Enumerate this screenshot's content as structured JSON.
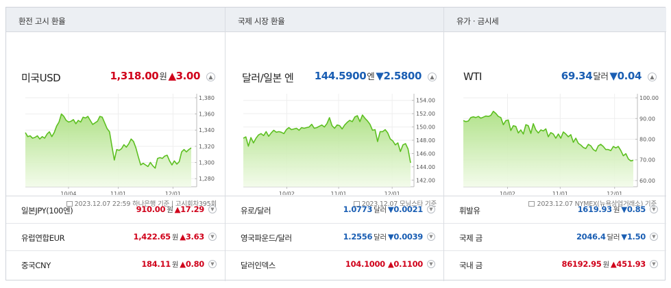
{
  "sections": [
    {
      "header": "환전 고시 환율",
      "main": {
        "name": "미국USD",
        "price": "1,318.00",
        "unit": "원",
        "change_arrow": "▲",
        "change": "3.00",
        "direction": "up",
        "source": "2023.12.07 22:59 하나은행 기준 | 고시회차395회"
      },
      "rows": [
        {
          "name": "일본JPY(100엔)",
          "value": "910.00",
          "unit": "원",
          "arrow": "▲",
          "change": "17.29",
          "direction": "up"
        },
        {
          "name": "유럽연합EUR",
          "value": "1,422.65",
          "unit": "원",
          "arrow": "▲",
          "change": "3.63",
          "direction": "up"
        },
        {
          "name": "중국CNY",
          "value": "184.11",
          "unit": "원",
          "arrow": "▲",
          "change": "0.80",
          "direction": "up"
        }
      ]
    },
    {
      "header": "국제 시장 환율",
      "main": {
        "name": "달러/일본 엔",
        "price": "144.5900",
        "unit": "엔",
        "change_arrow": "▼",
        "change": "2.5800",
        "direction": "down",
        "source": "2023.12.07 모닝스타 기준"
      },
      "rows": [
        {
          "name": "유로/달러",
          "value": "1.0773",
          "unit": "달러",
          "arrow": "▼",
          "change": "0.0021",
          "direction": "down"
        },
        {
          "name": "영국파운드/달러",
          "value": "1.2556",
          "unit": "달러",
          "arrow": "▼",
          "change": "0.0039",
          "direction": "down"
        },
        {
          "name": "달러인덱스",
          "value": "104.1000",
          "unit": "",
          "arrow": "▲",
          "change": "0.1100",
          "direction": "up"
        }
      ]
    },
    {
      "header": "유가 · 금시세",
      "main": {
        "name": "WTI",
        "price": "69.34",
        "unit": "달러",
        "change_arrow": "▼",
        "change": "0.04",
        "direction": "down",
        "source": "2023.12.07 NYMEX(뉴욕상업거래소) 기준"
      },
      "rows": [
        {
          "name": "휘발유",
          "value": "1619.93",
          "unit": "원",
          "arrow": "▼",
          "change": "0.85",
          "direction": "down"
        },
        {
          "name": "국제 금",
          "value": "2046.4",
          "unit": "달러",
          "arrow": "▼",
          "change": "1.50",
          "direction": "down"
        },
        {
          "name": "국내 금",
          "value": "86192.95",
          "unit": "원",
          "arrow": "▲",
          "change": "451.93",
          "direction": "up"
        }
      ]
    }
  ],
  "colors": {
    "up": "#d0021b",
    "down": "#1a5eb3",
    "line": "#5cbf20"
  },
  "chart_data": [
    {
      "type": "area",
      "ylim": [
        1270,
        1385
      ],
      "yticks": [
        "1,380",
        "1,360",
        "1,340",
        "1,320",
        "1,300",
        "1,280"
      ],
      "ytick_values": [
        1380,
        1360,
        1340,
        1320,
        1300,
        1280
      ],
      "xticks": [
        "10/04",
        "11/01",
        "12/01"
      ],
      "xtick_positions": [
        0.26,
        0.56,
        0.89
      ],
      "values": [
        1337,
        1332,
        1333,
        1330,
        1331,
        1333,
        1329,
        1332,
        1330,
        1335,
        1338,
        1332,
        1337,
        1345,
        1350,
        1360,
        1357,
        1352,
        1350,
        1351,
        1353,
        1348,
        1352,
        1350,
        1356,
        1355,
        1357,
        1352,
        1347,
        1349,
        1351,
        1357,
        1356,
        1349,
        1342,
        1338,
        1320,
        1303,
        1316,
        1315,
        1317,
        1322,
        1319,
        1323,
        1329,
        1326,
        1318,
        1307,
        1297,
        1299,
        1297,
        1295,
        1300,
        1296,
        1293,
        1305,
        1306,
        1305,
        1308,
        1309,
        1302,
        1297,
        1302,
        1298,
        1301,
        1313,
        1316,
        1313,
        1316,
        1318
      ]
    },
    {
      "type": "area",
      "ylim": [
        141,
        155
      ],
      "yticks": [
        "154.00",
        "152.00",
        "150.00",
        "148.00",
        "146.00",
        "144.00",
        "142.00"
      ],
      "ytick_values": [
        154,
        152,
        150,
        148,
        146,
        144,
        142
      ],
      "xticks": [
        "10/02",
        "11/01",
        "12/01"
      ],
      "xtick_positions": [
        0.26,
        0.57,
        0.89
      ],
      "values": [
        148.3,
        148.5,
        147.1,
        148.4,
        147.6,
        148.3,
        148.8,
        149.0,
        148.7,
        149.3,
        148.6,
        149.1,
        149.5,
        149.2,
        149.3,
        149.2,
        149.0,
        149.6,
        149.9,
        149.6,
        149.7,
        149.8,
        149.5,
        149.9,
        149.8,
        149.9,
        150.0,
        150.4,
        149.8,
        149.9,
        150.1,
        150.3,
        150.0,
        150.5,
        151.4,
        150.2,
        149.8,
        150.3,
        150.2,
        149.7,
        150.3,
        150.7,
        151.0,
        150.8,
        151.5,
        151.7,
        150.8,
        151.8,
        151.3,
        150.9,
        150.4,
        149.5,
        149.6,
        147.8,
        149.3,
        149.3,
        149.6,
        149.1,
        148.2,
        147.9,
        147.3,
        147.6,
        146.3,
        147.3,
        147.5,
        146.7,
        144.6
      ]
    },
    {
      "type": "area",
      "ylim": [
        57,
        102
      ],
      "yticks": [
        "100.00",
        "90.00",
        "80.00",
        "70.00",
        "60.00"
      ],
      "ytick_values": [
        100,
        90,
        80,
        70,
        60
      ],
      "xticks": [
        "10/02",
        "11/01",
        "12/01"
      ],
      "xtick_positions": [
        0.26,
        0.57,
        0.89
      ],
      "values": [
        89,
        88.5,
        88.8,
        90.5,
        90.8,
        90.5,
        91,
        90.2,
        90.7,
        91.2,
        91,
        91.5,
        93.5,
        92.5,
        91,
        90.5,
        87,
        89,
        89.3,
        84.2,
        86.5,
        86.2,
        83,
        84.5,
        82.5,
        87,
        86.5,
        82.8,
        87.5,
        84.5,
        83,
        84.5,
        84,
        85,
        81.2,
        83.2,
        82.5,
        80.5,
        82.5,
        80.5,
        83.5,
        82.5,
        81.2,
        82.2,
        78.5,
        80.5,
        78,
        77.2,
        76,
        75.5,
        77.5,
        76.8,
        75,
        74.2,
        76.8,
        77.5,
        76.5,
        75,
        75,
        74.5,
        76.5,
        75.8,
        76.5,
        74.5,
        72,
        73,
        70.5,
        69.5,
        69.8
      ]
    }
  ]
}
